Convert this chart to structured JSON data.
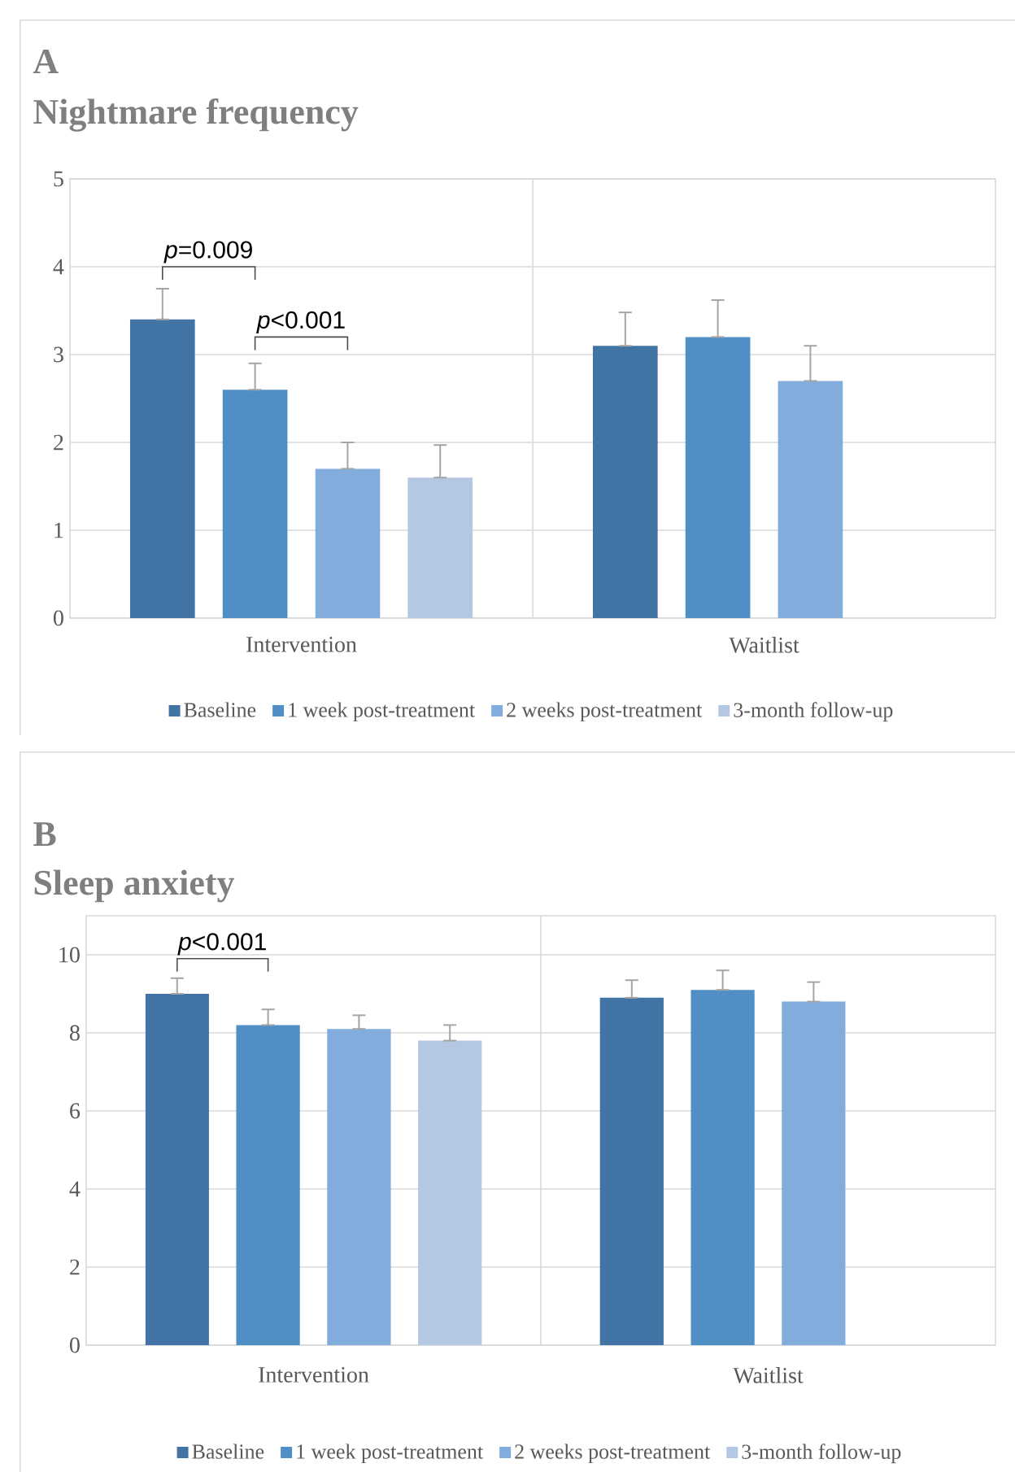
{
  "chart_data": [
    {
      "type": "bar",
      "title": "A",
      "subtitle": "Nightmare frequency",
      "categories": [
        "Intervention",
        "Waitlist"
      ],
      "series": [
        {
          "name": "Baseline",
          "color": "#4273a5",
          "values": [
            3.4,
            3.1
          ],
          "errors": [
            [
              3.4,
              3.75
            ],
            [
              3.1,
              3.48
            ]
          ]
        },
        {
          "name": "1 week post-treatment",
          "color": "#4f8fc6",
          "values": [
            2.6,
            3.2
          ],
          "errors": [
            [
              2.6,
              2.9
            ],
            [
              3.2,
              3.62
            ]
          ]
        },
        {
          "name": "2 weeks post-treatment",
          "color": "#82acdc",
          "values": [
            1.7,
            2.7
          ],
          "errors": [
            [
              1.7,
              2.0
            ],
            [
              2.7,
              3.1
            ]
          ]
        },
        {
          "name": "3-month follow-up",
          "color": "#b4c8e4",
          "values": [
            1.6,
            null
          ],
          "errors": [
            [
              1.6,
              1.97
            ],
            null
          ]
        }
      ],
      "ylim": [
        0,
        5
      ],
      "yticks": [
        0,
        1,
        2,
        3,
        4,
        5
      ],
      "grid": true,
      "legend": "bottom",
      "annotations": [
        "*p*=0.009",
        "*p*<0.001"
      ]
    },
    {
      "type": "bar",
      "title": "B",
      "subtitle": "Sleep anxiety",
      "categories": [
        "Intervention",
        "Waitlist"
      ],
      "series": [
        {
          "name": "Baseline",
          "color": "#4273a5",
          "values": [
            9.0,
            8.9
          ],
          "errors": [
            [
              9.0,
              9.4
            ],
            [
              8.9,
              9.35
            ]
          ]
        },
        {
          "name": "1 week post-treatment",
          "color": "#4f8fc6",
          "values": [
            8.2,
            9.1
          ],
          "errors": [
            [
              8.2,
              8.6
            ],
            [
              9.1,
              9.6
            ]
          ]
        },
        {
          "name": "2 weeks post-treatment",
          "color": "#82acdc",
          "values": [
            8.1,
            8.8
          ],
          "errors": [
            [
              8.1,
              8.45
            ],
            [
              8.8,
              9.3
            ]
          ]
        },
        {
          "name": "3-month follow-up",
          "color": "#b4c8e4",
          "values": [
            7.8,
            null
          ],
          "errors": [
            [
              7.8,
              8.2
            ],
            null
          ]
        }
      ],
      "ylim": [
        0,
        11
      ],
      "yticks": [
        0,
        2,
        4,
        6,
        8,
        10
      ],
      "grid": true,
      "legend": "bottom",
      "annotations": [
        "*p*<0.001"
      ]
    }
  ]
}
